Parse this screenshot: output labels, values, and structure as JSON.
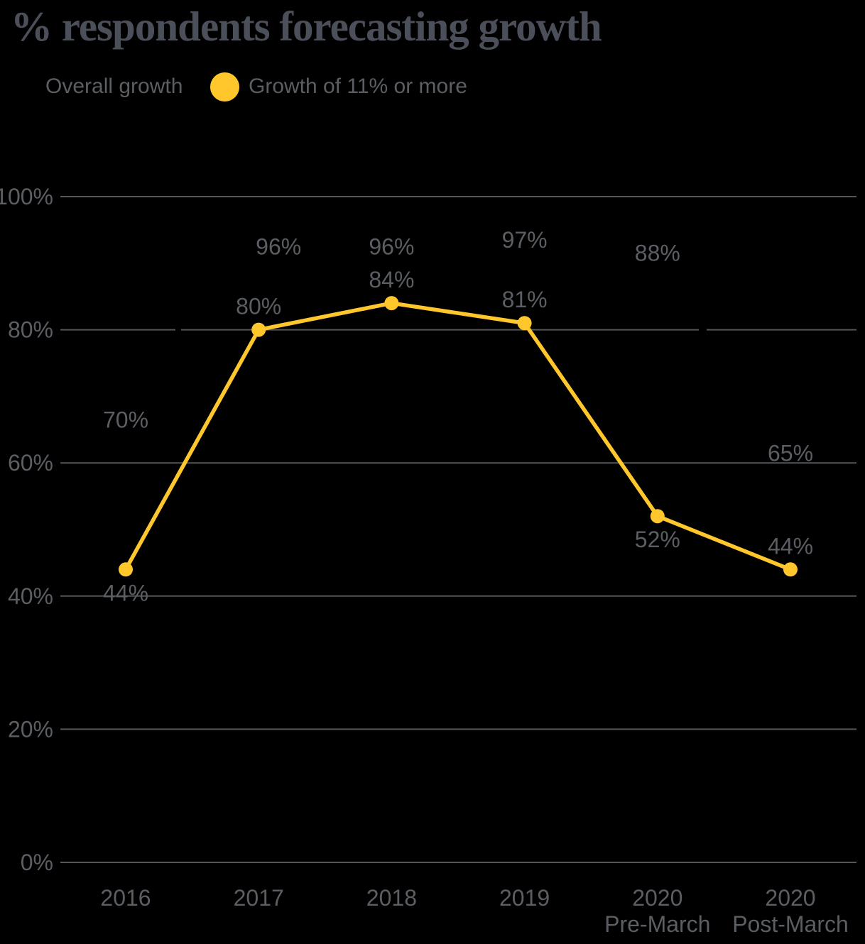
{
  "title": "% respondents forecasting growth",
  "legend": {
    "items": [
      {
        "label": "Overall growth"
      },
      {
        "label": "Growth of 11% or more",
        "marker_color": "#FFC72C"
      }
    ]
  },
  "colors": {
    "background": "#000000",
    "accent_yellow": "#FFC72C",
    "text_gray": "#5B5E63",
    "title_color": "#4B4F59",
    "gridline": "#53565A"
  },
  "chart_data": {
    "type": "line",
    "categories": [
      [
        "2016"
      ],
      [
        "2017"
      ],
      [
        "2018"
      ],
      [
        "2019"
      ],
      [
        "2020",
        "Pre-March"
      ],
      [
        "2020",
        "Post-March"
      ]
    ],
    "series": [
      {
        "name": "Overall growth",
        "values": [
          70,
          96,
          96,
          97,
          88,
          65
        ],
        "line_visible": false,
        "label_side": [
          "below",
          "below",
          "below",
          "below",
          "above",
          "below"
        ],
        "label_x_offset": [
          0,
          28,
          0,
          0,
          0,
          0
        ]
      },
      {
        "name": "Growth of 11% or more",
        "values": [
          44,
          80,
          84,
          81,
          52,
          44
        ],
        "color": "#FFC72C",
        "line_visible": true,
        "label_side": [
          "below",
          "above",
          "above",
          "above",
          "below",
          "above"
        ],
        "label_x_offset": [
          0,
          0,
          0,
          0,
          0,
          0
        ]
      }
    ],
    "axis": {
      "y_ticks": [
        0,
        20,
        40,
        60,
        80,
        100
      ],
      "y_suffix": "%",
      "ylim": [
        0,
        100
      ]
    },
    "grid": true,
    "legend_position": "top"
  }
}
